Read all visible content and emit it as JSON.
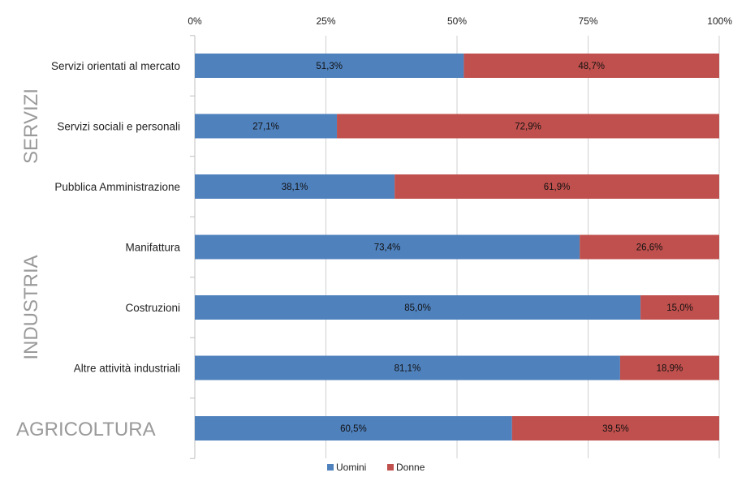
{
  "chart_data": {
    "type": "bar",
    "orientation": "horizontal",
    "stacked": true,
    "percent_stacked": true,
    "categories": [
      "Servizi orientati al mercato",
      "Servizi sociali e personali",
      "Pubblica Amministrazione",
      "Manifattura",
      "Costruzioni",
      "Altre attività industriali",
      "AGRICOLTURA"
    ],
    "series": [
      {
        "name": "Uomini",
        "color": "#4f81bd",
        "values": [
          51.3,
          27.1,
          38.1,
          73.4,
          85.0,
          81.1,
          60.5
        ],
        "labels": [
          "51,3%",
          "27,1%",
          "38,1%",
          "73,4%",
          "85,0%",
          "81,1%",
          "60,5%"
        ]
      },
      {
        "name": "Donne",
        "color": "#c0504d",
        "values": [
          48.7,
          72.9,
          61.9,
          26.6,
          15.0,
          18.9,
          39.5
        ],
        "labels": [
          "48,7%",
          "72,9%",
          "61,9%",
          "26,6%",
          "15,0%",
          "18,9%",
          "39,5%"
        ]
      }
    ],
    "x_ticks": [
      "0%",
      "25%",
      "50%",
      "75%",
      "100%"
    ],
    "xlim": [
      0,
      100
    ],
    "x_axis_position": "top",
    "grid": true,
    "legend_position": "bottom",
    "groups": [
      {
        "label": "SERVIZI",
        "categories": [
          0,
          1,
          2
        ],
        "orientation": "vertical"
      },
      {
        "label": "INDUSTRIA",
        "categories": [
          3,
          4,
          5
        ],
        "orientation": "vertical"
      },
      {
        "label": "AGRICOLTURA",
        "categories": [
          6
        ],
        "orientation": "horizontal"
      }
    ]
  }
}
